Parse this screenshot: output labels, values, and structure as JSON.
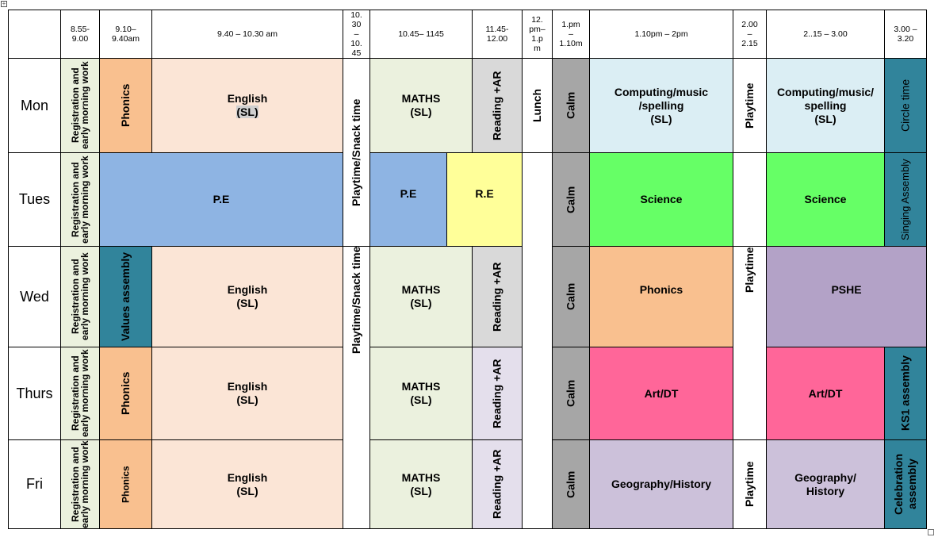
{
  "colors": {
    "green": "#ebf1de",
    "orange": "#f9c08f",
    "peach": "#fbe5d6",
    "grey": "#d9d9d9",
    "lightblue": "#dbeef4",
    "blue": "#8eb4e3",
    "yellow": "#ffff99",
    "brightgreen": "#66ff66",
    "teal": "#31849b",
    "purple": "#b3a2c7",
    "pink": "#ff6699",
    "lavender": "#ccc1da",
    "paleLavender": "#e4dfec",
    "calm": "#a6a6a6"
  },
  "header": {
    "t1": [
      "8.55-",
      "9.00"
    ],
    "t2": [
      "9.10–",
      "9.40am"
    ],
    "t3": "9.40 – 10.30 am",
    "t4": [
      "10.",
      "30",
      "–",
      "10.",
      "45"
    ],
    "t5": "10.45– 1145",
    "t6": [
      "11.45-",
      "12.00"
    ],
    "t7": [
      "12.",
      "pm–",
      "1.p",
      "m"
    ],
    "t8": [
      "1.pm",
      "–",
      "1.10m"
    ],
    "t9": "1.10pm – 2pm",
    "t10": [
      "2.00",
      "–",
      "2.15"
    ],
    "t11": "2..15 – 3.00",
    "t12": [
      "3.00 –",
      "3.20"
    ]
  },
  "days": [
    "Mon",
    "Tues",
    "Wed",
    "Thurs",
    "Fri"
  ],
  "cells": {
    "registration": "Registration and early morning work",
    "registration_fri": "Registration and early morning work",
    "phonics": "Phonics",
    "english": [
      "English",
      "(SL)"
    ],
    "maths": [
      "MATHS",
      "(SL)"
    ],
    "reading": "Reading +AR",
    "lunch": "Lunch",
    "calm": "Calm",
    "playtime_snack": "Playtime/Snack time",
    "playtime": "Playtime",
    "pe": "P.E",
    "pe_short": "P.E",
    "re": "R.E",
    "science": "Science",
    "values_assembly": "Values assembly",
    "computing1": [
      "Computing/music",
      "/spelling",
      "(SL)"
    ],
    "computing2": [
      "Computing/music/",
      "spelling",
      "(SL)"
    ],
    "circle_time": "Circle time",
    "singing_assembly": "Singing Assembly",
    "pshe": "PSHE",
    "art_dt": "Art/DT",
    "ks1_assembly": "KS1 assembly",
    "geo_history1": "Geography/History",
    "geo_history2": [
      "Geography/",
      "History"
    ],
    "celebration_assembly": "Celebration assembly"
  }
}
